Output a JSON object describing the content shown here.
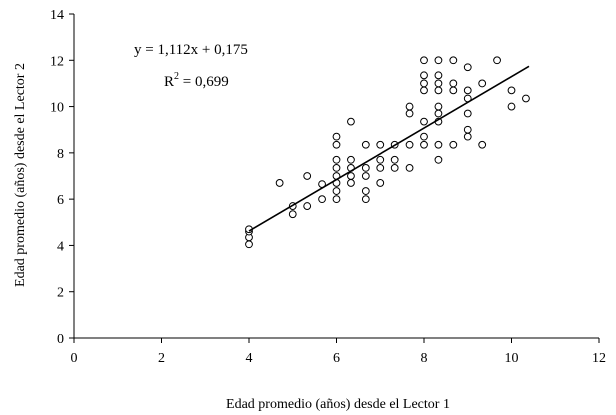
{
  "chart_data": {
    "type": "scatter",
    "xlabel": "Edad promedio (años) desde el Lector 1",
    "ylabel": "Edad promedio (años) desde el Lector 2",
    "xlim": [
      0,
      12
    ],
    "ylim": [
      0,
      14
    ],
    "x_ticks": [
      "0",
      "2",
      "4",
      "6",
      "8",
      "10",
      "12"
    ],
    "y_ticks": [
      "0",
      "2",
      "4",
      "6",
      "8",
      "10",
      "12",
      "14"
    ],
    "grid": false,
    "marker": "open-circle",
    "annotation": {
      "equation": "y = 1,112x + 0,175",
      "r2_prefix": "R",
      "r2_exp": "2",
      "r2_value": " = 0,699"
    },
    "trendline": {
      "slope": 1.112,
      "intercept": 0.175,
      "x_range": [
        4.0,
        10.4
      ]
    },
    "points": [
      [
        4.0,
        4.05
      ],
      [
        4.0,
        4.35
      ],
      [
        4.0,
        4.6
      ],
      [
        4.0,
        4.7
      ],
      [
        4.7,
        6.7
      ],
      [
        5.0,
        5.35
      ],
      [
        5.0,
        5.7
      ],
      [
        5.33,
        5.7
      ],
      [
        5.33,
        7.0
      ],
      [
        5.67,
        6.0
      ],
      [
        5.67,
        6.65
      ],
      [
        6.0,
        6.0
      ],
      [
        6.0,
        6.35
      ],
      [
        6.0,
        6.7
      ],
      [
        6.0,
        7.0
      ],
      [
        6.0,
        7.35
      ],
      [
        6.0,
        7.7
      ],
      [
        6.0,
        8.35
      ],
      [
        6.0,
        8.7
      ],
      [
        6.33,
        6.7
      ],
      [
        6.33,
        7.0
      ],
      [
        6.33,
        7.35
      ],
      [
        6.33,
        7.7
      ],
      [
        6.33,
        9.35
      ],
      [
        6.67,
        6.0
      ],
      [
        6.67,
        6.35
      ],
      [
        6.67,
        7.0
      ],
      [
        6.67,
        7.35
      ],
      [
        6.67,
        8.35
      ],
      [
        7.0,
        6.7
      ],
      [
        7.0,
        7.35
      ],
      [
        7.0,
        7.7
      ],
      [
        7.0,
        8.35
      ],
      [
        7.33,
        7.35
      ],
      [
        7.33,
        7.7
      ],
      [
        7.33,
        8.35
      ],
      [
        7.67,
        7.35
      ],
      [
        7.67,
        8.35
      ],
      [
        7.67,
        9.7
      ],
      [
        7.67,
        10.0
      ],
      [
        8.0,
        8.35
      ],
      [
        8.0,
        8.7
      ],
      [
        8.0,
        9.35
      ],
      [
        8.0,
        10.7
      ],
      [
        8.0,
        11.0
      ],
      [
        8.0,
        11.35
      ],
      [
        8.0,
        12.0
      ],
      [
        8.33,
        7.7
      ],
      [
        8.33,
        8.35
      ],
      [
        8.33,
        9.35
      ],
      [
        8.33,
        9.7
      ],
      [
        8.33,
        10.0
      ],
      [
        8.33,
        10.7
      ],
      [
        8.33,
        11.0
      ],
      [
        8.33,
        11.35
      ],
      [
        8.33,
        12.0
      ],
      [
        8.67,
        8.35
      ],
      [
        8.67,
        10.7
      ],
      [
        8.67,
        11.0
      ],
      [
        8.67,
        12.0
      ],
      [
        9.0,
        8.7
      ],
      [
        9.0,
        9.0
      ],
      [
        9.0,
        9.7
      ],
      [
        9.0,
        10.35
      ],
      [
        9.0,
        10.7
      ],
      [
        9.0,
        11.7
      ],
      [
        9.33,
        8.35
      ],
      [
        9.33,
        11.0
      ],
      [
        9.67,
        12.0
      ],
      [
        10.0,
        10.0
      ],
      [
        10.0,
        10.7
      ],
      [
        10.33,
        10.35
      ]
    ]
  }
}
